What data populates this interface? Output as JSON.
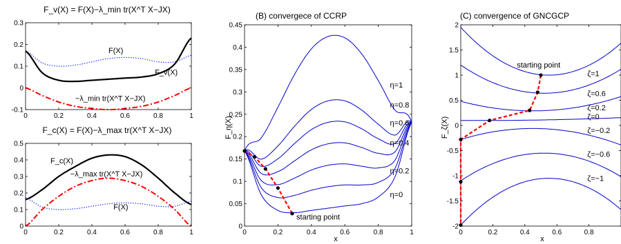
{
  "chart_data": [
    {
      "type": "line",
      "title": "F_v(X) = F(X)−λ_min tr(X^T X−JX)",
      "xlim": [
        0,
        1
      ],
      "ylim": [
        -0.1,
        0.3
      ],
      "xticks": [
        0,
        0.2,
        0.4,
        0.6,
        0.8,
        1
      ],
      "yticks": [
        -0.1,
        0,
        0.1,
        0.2,
        0.3
      ],
      "xtick_labels": [
        "0",
        "0.2",
        "0.4",
        "0.6",
        "0.8",
        "1"
      ],
      "ytick_labels": [
        "-0.1",
        "0",
        "0.1",
        "0.2",
        "0.3"
      ],
      "series": [
        {
          "name": "F(X)",
          "style": "dotted",
          "color": "#0000ff",
          "x": [
            0,
            0.1,
            0.2,
            0.3,
            0.4,
            0.5,
            0.6,
            0.7,
            0.8,
            0.9,
            1
          ],
          "y": [
            0.17,
            0.115,
            0.1,
            0.105,
            0.12,
            0.135,
            0.14,
            0.135,
            0.12,
            0.12,
            0.15
          ]
        },
        {
          "name": "F_v(X)",
          "style": "solid-thick",
          "color": "#000000",
          "x": [
            0,
            0.1,
            0.2,
            0.3,
            0.4,
            0.5,
            0.6,
            0.7,
            0.8,
            0.9,
            1
          ],
          "y": [
            0.17,
            0.07,
            0.035,
            0.03,
            0.035,
            0.04,
            0.045,
            0.05,
            0.065,
            0.11,
            0.23
          ]
        },
        {
          "name": "−λ_min tr(X^T X−JX)",
          "style": "dashdot",
          "color": "#ff0000",
          "x": [
            0,
            0.1,
            0.2,
            0.3,
            0.4,
            0.5,
            0.6,
            0.7,
            0.8,
            0.9,
            1
          ],
          "y": [
            0,
            -0.035,
            -0.065,
            -0.085,
            -0.095,
            -0.1,
            -0.095,
            -0.085,
            -0.065,
            -0.035,
            0
          ]
        }
      ],
      "annotations": [
        {
          "text": "F(X)",
          "x": 0.5,
          "y": 0.16
        },
        {
          "text": "F_v(X)",
          "x": 0.78,
          "y": 0.06
        },
        {
          "text": "−λ_min tr(X^T X−JX)",
          "x": 0.3,
          "y": -0.06
        }
      ]
    },
    {
      "type": "line",
      "title": "F_c(X) = F(X)−λ_max tr(X^T X−JX)",
      "xlim": [
        0,
        1
      ],
      "ylim": [
        0,
        0.5
      ],
      "xticks": [
        0,
        0.2,
        0.4,
        0.6,
        0.8,
        1
      ],
      "yticks": [
        0,
        0.1,
        0.2,
        0.3,
        0.4,
        0.5
      ],
      "xtick_labels": [
        "0",
        "0.2",
        "0.4",
        "0.6",
        "0.8",
        "1"
      ],
      "ytick_labels": [
        "0",
        "0.1",
        "0.2",
        "0.3",
        "0.4",
        "0.5"
      ],
      "series": [
        {
          "name": "F_c(X)",
          "style": "solid-thick",
          "color": "#000000",
          "x": [
            0,
            0.1,
            0.2,
            0.3,
            0.4,
            0.5,
            0.6,
            0.7,
            0.8,
            0.9,
            1
          ],
          "y": [
            0.16,
            0.22,
            0.3,
            0.36,
            0.41,
            0.43,
            0.42,
            0.37,
            0.29,
            0.2,
            0.13
          ]
        },
        {
          "name": "F(X)",
          "style": "dotted",
          "color": "#0000ff",
          "x": [
            0,
            0.1,
            0.2,
            0.3,
            0.4,
            0.5,
            0.6,
            0.7,
            0.8,
            0.9,
            1
          ],
          "y": [
            0.17,
            0.115,
            0.1,
            0.105,
            0.12,
            0.135,
            0.14,
            0.135,
            0.12,
            0.12,
            0.15
          ]
        },
        {
          "name": "−λ_max tr(X^T X−JX)",
          "style": "dashdot",
          "color": "#ff0000",
          "x": [
            0,
            0.1,
            0.2,
            0.3,
            0.4,
            0.5,
            0.6,
            0.7,
            0.8,
            0.9,
            1
          ],
          "y": [
            0,
            0.1,
            0.18,
            0.24,
            0.275,
            0.29,
            0.275,
            0.24,
            0.18,
            0.1,
            0
          ]
        }
      ],
      "annotations": [
        {
          "text": "F_c(X)",
          "x": 0.15,
          "y": 0.38
        },
        {
          "text": "−λ_max tr(X^T X−JX)",
          "x": 0.27,
          "y": 0.3
        },
        {
          "text": "F(X)",
          "x": 0.53,
          "y": 0.1
        }
      ]
    },
    {
      "type": "line",
      "title": "(B) convergece of CCRP",
      "xlabel": "x",
      "ylabel": "F_η(X)",
      "xlim": [
        0,
        1
      ],
      "ylim": [
        0,
        0.45
      ],
      "xticks": [
        0,
        0.2,
        0.4,
        0.6,
        0.8,
        1
      ],
      "yticks": [
        0,
        0.05,
        0.1,
        0.15,
        0.2,
        0.25,
        0.3,
        0.35,
        0.4,
        0.45
      ],
      "xtick_labels": [
        "0",
        "0.2",
        "0.4",
        "0.6",
        "0.8",
        "1"
      ],
      "ytick_labels": [
        "0",
        "0.05",
        "0.1",
        "0.15",
        "0.2",
        "0.25",
        "0.3",
        "0.35",
        "0.4",
        "0.45"
      ],
      "family": {
        "f": "F(X)+η·x(1−x)",
        "F_x": [
          0,
          0.1,
          0.2,
          0.3,
          0.4,
          0.5,
          0.6,
          0.7,
          0.8,
          0.9,
          1
        ],
        "F_y": [
          0.168,
          0.07,
          0.035,
          0.03,
          0.035,
          0.04,
          0.045,
          0.05,
          0.065,
          0.11,
          0.232
        ],
        "eta": [
          0,
          0.2,
          0.4,
          0.6,
          0.8,
          1.0,
          1.6
        ]
      },
      "series_labels": [
        {
          "text": "η=1",
          "y": 0.31
        },
        {
          "text": "η=0.8",
          "y": 0.265
        },
        {
          "text": "η=0.6",
          "y": 0.225
        },
        {
          "text": "η=0.4",
          "y": 0.18
        },
        {
          "text": "η=0.2",
          "y": 0.118
        },
        {
          "text": "η=0",
          "y": 0.065
        }
      ],
      "path": {
        "x": [
          0.285,
          0.2,
          0.125,
          0.06,
          0
        ],
        "y": [
          0.028,
          0.085,
          0.128,
          0.155,
          0.168
        ]
      },
      "annotations": [
        {
          "text": "starting point",
          "x": 0.31,
          "y": 0.015
        }
      ]
    },
    {
      "type": "line",
      "title": "(C) convergence of GNCGCP",
      "xlabel": "x",
      "ylabel": "F_ζ(X)",
      "xlim": [
        0,
        1
      ],
      "ylim": [
        -2,
        2
      ],
      "xticks": [
        0,
        0.2,
        0.4,
        0.6,
        0.8
      ],
      "yticks": [
        -2,
        -1.5,
        -1,
        -0.5,
        0,
        0.5,
        1,
        1.5,
        2
      ],
      "xtick_labels": [
        "0",
        "0.2",
        "0.4",
        "0.6",
        "0.8"
      ],
      "ytick_labels": [
        "-2",
        "-1.5",
        "-1",
        "-0.5",
        "0",
        "0.5",
        "1",
        "1.5",
        "2"
      ],
      "curves": [
        {
          "zeta": "ζ=1",
          "y0": 1.95,
          "ymin": 1.0,
          "xmin": 0.55
        },
        {
          "zeta": "ζ=0.6",
          "y0": 1.2,
          "ymin": 0.64,
          "xmin": 0.52
        },
        {
          "zeta": "ζ=0.2",
          "y0": 0.48,
          "ymin": 0.29,
          "xmin": 0.45
        },
        {
          "zeta": "ζ=0",
          "y0": 0.1,
          "ymin": 0.07,
          "xmin": 0.4,
          "flat": true
        },
        {
          "zeta": "ζ=−0.2",
          "y0": -0.28,
          "ymax": -0.06,
          "xmax": 0.45
        },
        {
          "zeta": "ζ=−0.6",
          "y0": -1.1,
          "ymax": -0.55,
          "xmax": 0.52
        },
        {
          "zeta": "ζ=−1",
          "y0": -1.98,
          "ymax": -1.05,
          "xmax": 0.55
        }
      ],
      "series_labels": [
        {
          "text": "ζ=1",
          "y": 0.98
        },
        {
          "text": "ζ=0.6",
          "y": 0.58
        },
        {
          "text": "ζ=0.2",
          "y": 0.3
        },
        {
          "text": "ζ=0",
          "y": 0.12
        },
        {
          "text": "ζ=−0.2",
          "y": -0.15
        },
        {
          "text": "ζ=−0.6",
          "y": -0.62
        },
        {
          "text": "ζ=−1",
          "y": -1.1
        }
      ],
      "path": {
        "x": [
          0.5,
          0.48,
          0.43,
          0.18,
          0,
          0,
          0
        ],
        "y": [
          1.0,
          0.66,
          0.3,
          0.1,
          -0.28,
          -1.12,
          -1.98
        ]
      },
      "annotations": [
        {
          "text": "starting point",
          "x": 0.35,
          "y": 1.15
        }
      ]
    }
  ]
}
